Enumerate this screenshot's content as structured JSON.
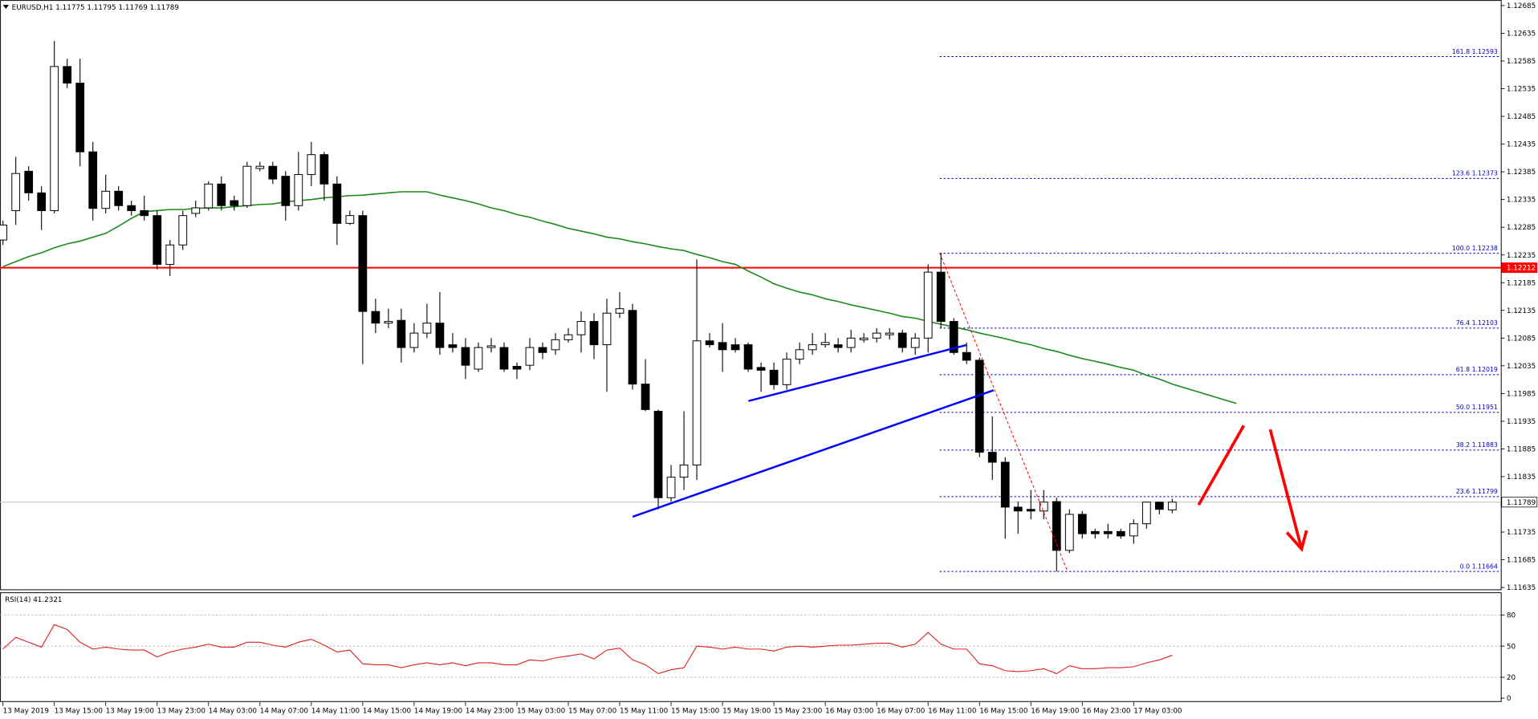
{
  "chart_data": [
    {
      "type": "candlestick",
      "symbol": "EURUSD,H1",
      "ylim": [
        1.1163,
        1.12695
      ],
      "yticks": [
        1.12685,
        1.12635,
        1.12585,
        1.12535,
        1.12485,
        1.12435,
        1.12385,
        1.12335,
        1.12285,
        1.12235,
        1.12185,
        1.12135,
        1.12085,
        1.12035,
        1.11985,
        1.11935,
        1.11885,
        1.11835,
        1.11785,
        1.11735,
        1.11685,
        1.11635
      ],
      "categories": [
        "13 May 2019",
        null,
        null,
        null,
        "13 May 15:00",
        null,
        null,
        null,
        "13 May 19:00",
        null,
        null,
        null,
        "13 May 23:00",
        null,
        null,
        null,
        "14 May 03:00",
        null,
        null,
        null,
        "14 May 07:00",
        null,
        null,
        null,
        "14 May 11:00",
        null,
        null,
        null,
        "14 May 15:00",
        null,
        null,
        null,
        "14 May 19:00",
        null,
        null,
        null,
        "14 May 23:00",
        null,
        null,
        null,
        "15 May 03:00",
        null,
        null,
        null,
        "15 May 07:00",
        null,
        null,
        null,
        "15 May 11:00",
        null,
        null,
        null,
        "15 May 15:00",
        null,
        null,
        null,
        "15 May 19:00",
        null,
        null,
        null,
        "15 May 23:00",
        null,
        null,
        null,
        "16 May 03:00",
        null,
        null,
        null,
        "16 May 07:00",
        null,
        null,
        null,
        "16 May 11:00",
        null,
        null,
        null,
        "16 May 15:00",
        null,
        null,
        null,
        "16 May 19:00",
        null,
        null,
        null,
        "16 May 23:00",
        null,
        null,
        null,
        "17 May 03:00",
        null,
        null,
        null,
        null,
        null,
        null,
        null,
        null
      ],
      "open": [
        1.12262,
        1.12315,
        1.12386,
        1.12347,
        1.12315,
        1.12575,
        1.12545,
        1.12421,
        1.12319,
        1.1235,
        1.12324,
        1.12315,
        1.12306,
        1.12218,
        1.12253,
        1.1231,
        1.1232,
        1.12363,
        1.12333,
        1.12324,
        1.12391,
        1.12395,
        1.12377,
        1.12324,
        1.1238,
        1.12416,
        1.12363,
        1.12292,
        1.12306,
        1.12133,
        1.12112,
        1.12117,
        1.12068,
        1.12094,
        1.12112,
        1.12073,
        1.12068,
        1.12029,
        1.12068,
        1.12068,
        1.12034,
        1.12036,
        1.12068,
        1.12064,
        1.12082,
        1.12091,
        1.12115,
        1.12073,
        1.1213,
        1.12135,
        1.12002,
        1.11953,
        1.11797,
        1.11834,
        1.11856,
        1.1208,
        1.12077,
        1.12073,
        1.12073,
        1.12032,
        1.12027,
        1.12001,
        1.12047,
        1.12064,
        1.12073,
        1.12073,
        1.12068,
        1.12082,
        1.12085,
        1.12091,
        1.12094,
        1.12068,
        1.12085,
        1.12204,
        1.12115,
        1.12059,
        1.12045,
        1.11879,
        1.11861,
        1.1178,
        1.11776,
        1.11773,
        1.1179,
        1.11702,
        1.11767,
        1.11736,
        1.11736,
        1.11736,
        1.11728,
        1.1175,
        1.11789,
        1.11775,
        null,
        null,
        null,
        null,
        null
      ],
      "high": [
        1.12297,
        1.12412,
        1.12395,
        1.12359,
        1.12621,
        1.12589,
        1.12589,
        1.12439,
        1.1238,
        1.12359,
        1.12333,
        1.12342,
        1.12315,
        1.12262,
        1.12315,
        1.12333,
        1.12368,
        1.12377,
        1.12342,
        1.12403,
        1.12403,
        1.12403,
        1.12386,
        1.12421,
        1.12439,
        1.12421,
        1.12377,
        1.12315,
        1.12315,
        1.12156,
        1.12138,
        1.12138,
        1.12112,
        1.12147,
        1.12168,
        1.12094,
        1.12085,
        1.12077,
        1.12085,
        1.12077,
        1.12041,
        1.12085,
        1.12077,
        1.12094,
        1.12103,
        1.12133,
        1.1213,
        1.12156,
        1.12168,
        1.12147,
        1.12047,
        1.11956,
        1.11856,
        1.11953,
        1.12227,
        1.12094,
        1.12112,
        1.12085,
        1.12077,
        1.12041,
        1.12041,
        1.12059,
        1.12077,
        1.12094,
        1.12094,
        1.12085,
        1.121,
        1.12094,
        1.12103,
        1.12103,
        1.121,
        1.12094,
        1.12218,
        1.12238,
        1.12121,
        1.12077,
        1.1205,
        1.11944,
        1.1187,
        1.1179,
        1.11811,
        1.11811,
        1.11797,
        1.11776,
        1.11773,
        1.11741,
        1.1175,
        1.11741,
        1.11758,
        1.1179,
        1.1179,
        1.11795,
        null,
        null,
        null,
        null,
        null
      ],
      "low": [
        1.12253,
        1.12289,
        1.12333,
        1.1228,
        1.1231,
        1.12536,
        1.12395,
        1.12297,
        1.1231,
        1.12315,
        1.12306,
        1.12297,
        1.12209,
        1.12197,
        1.12244,
        1.12303,
        1.12315,
        1.12315,
        1.12315,
        1.1232,
        1.12386,
        1.12363,
        1.12297,
        1.12315,
        1.12359,
        1.12333,
        1.12253,
        1.12289,
        1.12038,
        1.12094,
        1.12103,
        1.12041,
        1.12059,
        1.12085,
        1.12055,
        1.12059,
        1.12011,
        1.12024,
        1.12059,
        1.12024,
        1.12011,
        1.12027,
        1.12047,
        1.12055,
        1.12077,
        1.12059,
        1.12047,
        1.11988,
        1.12121,
        1.11992,
        1.11953,
        1.11776,
        1.1179,
        1.11811,
        1.11829,
        1.12068,
        1.12024,
        1.12059,
        1.12024,
        1.11988,
        1.11992,
        1.11992,
        1.12038,
        1.12055,
        1.12068,
        1.12059,
        1.12059,
        1.12077,
        1.12077,
        1.12082,
        1.12059,
        1.12055,
        1.12059,
        1.12103,
        1.12055,
        1.12038,
        1.1187,
        1.11829,
        1.11723,
        1.11732,
        1.11758,
        1.11758,
        1.11664,
        1.11697,
        1.11723,
        1.11723,
        1.11723,
        1.11723,
        1.11714,
        1.11741,
        1.11767,
        1.11769,
        null,
        null,
        null,
        null,
        null
      ],
      "close": [
        1.12289,
        1.12382,
        1.12347,
        1.12315,
        1.12575,
        1.12545,
        1.12421,
        1.12319,
        1.1235,
        1.12324,
        1.12315,
        1.12306,
        1.12218,
        1.12253,
        1.12306,
        1.1232,
        1.12363,
        1.12324,
        1.12324,
        1.12395,
        1.12395,
        1.12372,
        1.12324,
        1.1238,
        1.12416,
        1.12363,
        1.12292,
        1.12306,
        1.12133,
        1.12112,
        1.12115,
        1.12068,
        1.12094,
        1.12112,
        1.12068,
        1.12068,
        1.12036,
        1.12068,
        1.12071,
        1.12029,
        1.12029,
        1.12068,
        1.12059,
        1.12082,
        1.12091,
        1.12115,
        1.12073,
        1.1213,
        1.12138,
        1.12002,
        1.11956,
        1.11797,
        1.11834,
        1.11856,
        1.1208,
        1.12073,
        1.12064,
        1.12064,
        1.12029,
        1.12027,
        1.12001,
        1.12047,
        1.12064,
        1.12073,
        1.12077,
        1.12068,
        1.12085,
        1.12085,
        1.12094,
        1.12094,
        1.12068,
        1.12085,
        1.12204,
        1.12115,
        1.12059,
        1.12045,
        1.11879,
        1.11861,
        1.1178,
        1.11773,
        1.11773,
        1.11789,
        1.11702,
        1.11767,
        1.11732,
        1.11732,
        1.11732,
        1.11728,
        1.1175,
        1.11789,
        1.11776,
        1.11789,
        null,
        null,
        null,
        null,
        null
      ],
      "moving_average": {
        "color": "#1a8a1a",
        "values": [
          1.12214,
          1.12223,
          1.12232,
          1.12239,
          1.12248,
          1.12255,
          1.1226,
          1.12267,
          1.12274,
          1.12287,
          1.12301,
          1.12313,
          1.12315,
          1.12317,
          1.12317,
          1.12319,
          1.1232,
          1.1232,
          1.12322,
          1.12324,
          1.12326,
          1.12327,
          1.12331,
          1.12333,
          1.12335,
          1.12338,
          1.1234,
          1.12342,
          1.12343,
          1.12345,
          1.12347,
          1.12349,
          1.12349,
          1.12349,
          1.12343,
          1.12338,
          1.12333,
          1.12327,
          1.1232,
          1.12315,
          1.12308,
          1.12303,
          1.12296,
          1.1229,
          1.12283,
          1.12278,
          1.12273,
          1.12267,
          1.12264,
          1.12259,
          1.12255,
          1.1225,
          1.12246,
          1.12243,
          1.12236,
          1.1223,
          1.12223,
          1.12218,
          1.12206,
          1.12195,
          1.12183,
          1.12175,
          1.12168,
          1.12163,
          1.12156,
          1.12151,
          1.12145,
          1.1214,
          1.12135,
          1.1213,
          1.12124,
          1.12121,
          1.12115,
          1.1211,
          1.12105,
          1.121,
          1.12094,
          1.12089,
          1.12084,
          1.12078,
          1.12073,
          1.12066,
          1.12061,
          1.12054,
          1.12048,
          1.12043,
          1.12038,
          1.12032,
          1.12027,
          1.12018,
          1.12011,
          1.12002,
          1.11995,
          1.11988,
          1.11981,
          1.11974,
          1.11967
        ]
      },
      "hlines": [
        {
          "value": 1.12212,
          "color": "#ff0000"
        },
        {
          "value": 1.11789,
          "color": "#c0c0c0"
        }
      ],
      "fib_levels": [
        {
          "ratio": "161.8",
          "price": 1.12593
        },
        {
          "ratio": "123.6",
          "price": 1.12373
        },
        {
          "ratio": "100.0",
          "price": 1.12238
        },
        {
          "ratio": "76.4",
          "price": 1.12103
        },
        {
          "ratio": "61.8",
          "price": 1.12019
        },
        {
          "ratio": "50.0",
          "price": 1.11951
        },
        {
          "ratio": "38.2",
          "price": 1.11883
        },
        {
          "ratio": "23.6",
          "price": 1.11799
        },
        {
          "ratio": "0.0",
          "price": 1.11664
        }
      ],
      "fib_color": "#0000cd"
    },
    {
      "type": "line",
      "title": "RSI(14)",
      "color": "#e02020",
      "ylim": [
        0,
        100
      ],
      "yticks": [
        0,
        20,
        50,
        80
      ],
      "grid": true,
      "values": [
        47.2,
        58.5,
        53.8,
        49.1,
        70.8,
        66.0,
        53.8,
        47.2,
        49.1,
        47.2,
        46.2,
        46.2,
        39.6,
        44.3,
        47.2,
        49.1,
        51.9,
        49.1,
        49.1,
        53.8,
        53.8,
        50.9,
        49.1,
        53.8,
        56.6,
        50.9,
        44.3,
        46.2,
        33.0,
        32.1,
        32.1,
        29.2,
        32.1,
        34.0,
        32.1,
        34.0,
        31.1,
        34.0,
        34.0,
        32.1,
        32.1,
        36.8,
        35.8,
        38.7,
        40.6,
        42.5,
        37.7,
        46.2,
        48.1,
        36.8,
        32.1,
        23.6,
        27.4,
        29.2,
        50.0,
        49.1,
        47.2,
        49.1,
        47.2,
        47.2,
        45.3,
        49.1,
        50.0,
        49.1,
        50.0,
        50.9,
        50.9,
        51.9,
        52.8,
        52.8,
        49.1,
        51.9,
        63.2,
        51.9,
        47.2,
        47.2,
        33.0,
        31.1,
        26.4,
        25.5,
        26.4,
        28.3,
        23.6,
        31.1,
        28.3,
        28.3,
        29.2,
        29.2,
        30.2,
        34.0,
        36.8,
        41.2321
      ]
    }
  ]
}
